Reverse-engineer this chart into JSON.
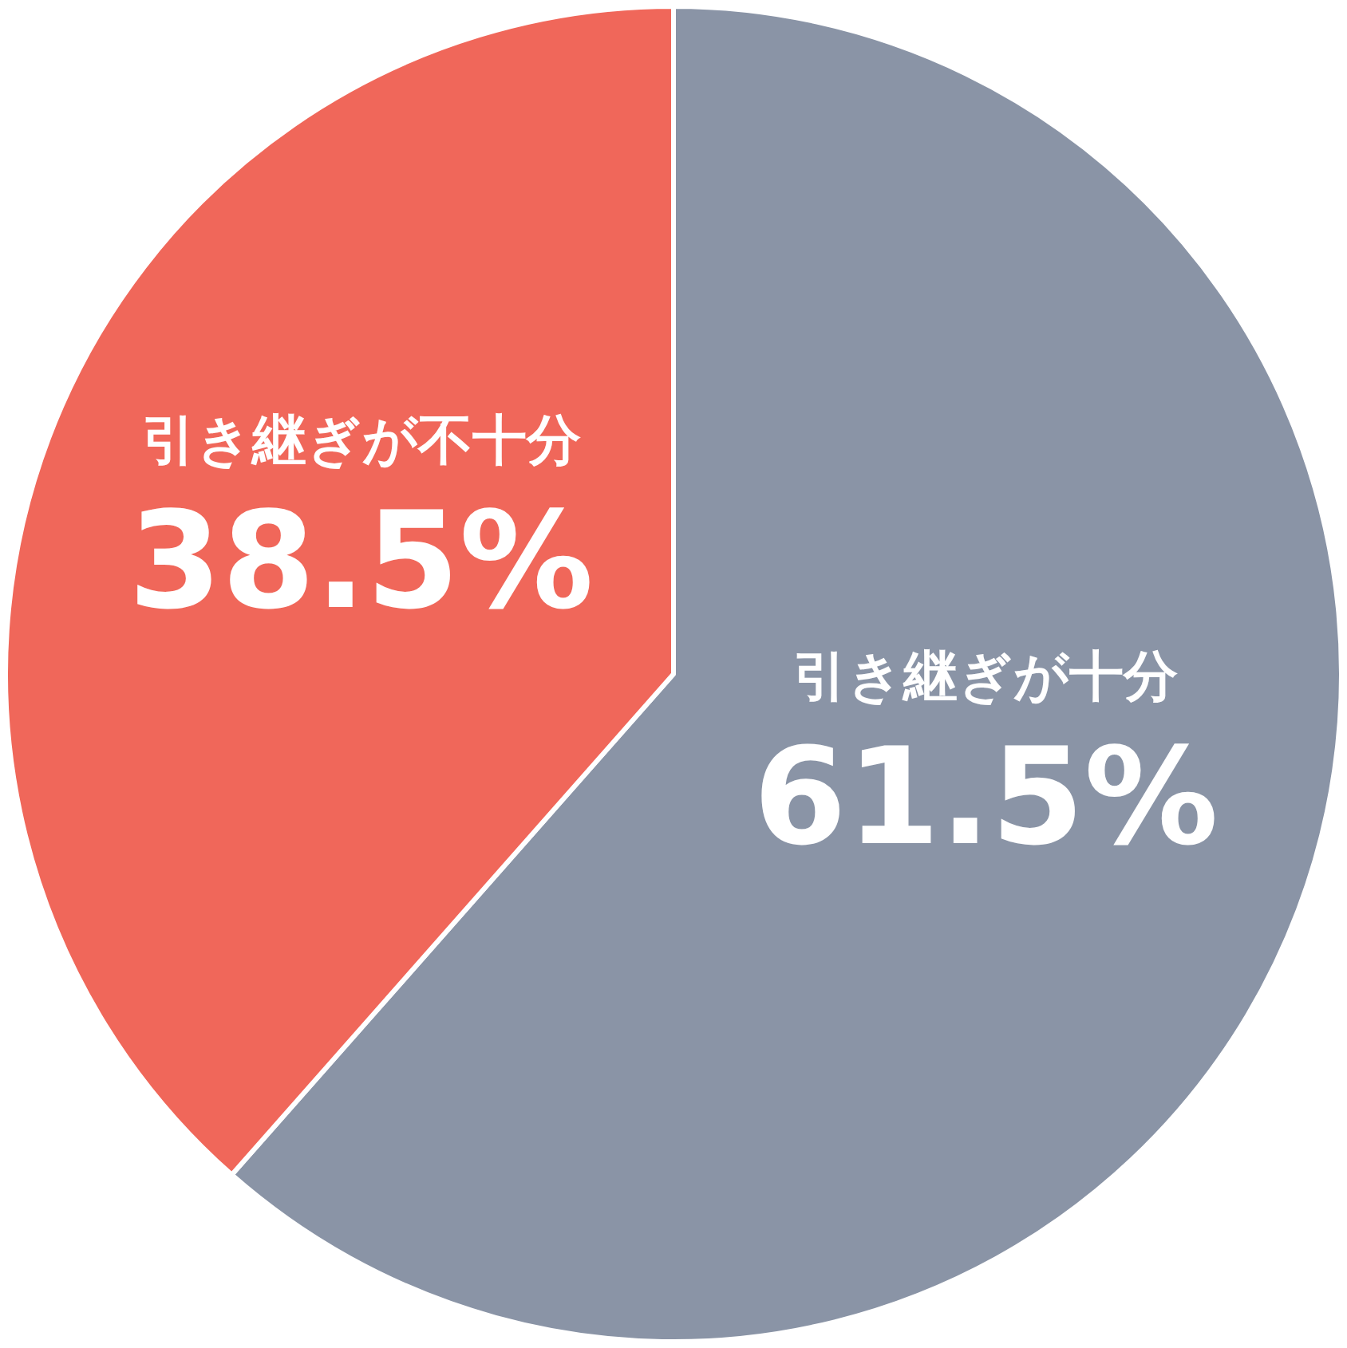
{
  "chart_data": {
    "type": "pie",
    "categories": [
      "引き継ぎが十分",
      "引き継ぎが不十分"
    ],
    "values": [
      61.5,
      38.5
    ],
    "colors": [
      "#8a94a6",
      "#f0675a"
    ],
    "value_labels": [
      "61.5%",
      "38.5%"
    ],
    "legend": false
  }
}
